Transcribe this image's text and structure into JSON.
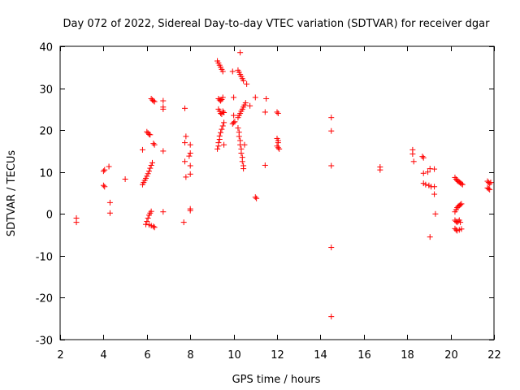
{
  "chart_data": {
    "type": "scatter",
    "title": "Day 072 of 2022, Sidereal Day-to-day VTEC variation (SDTVAR) for receiver dgar",
    "xlabel": "GPS time / hours",
    "ylabel": "SDTVAR / TECUs",
    "xlim": [
      2,
      22
    ],
    "ylim": [
      -30,
      40
    ],
    "xticks": [
      "2",
      "4",
      "6",
      "8",
      "10",
      "12",
      "14",
      "16",
      "18",
      "20",
      "22"
    ],
    "yticks": [
      "40",
      "30",
      "20",
      "10",
      "0",
      "-10",
      "-20",
      "-30"
    ],
    "marker": "+",
    "series": [
      {
        "name": "SDTVAR",
        "color": "#ff0000",
        "points": [
          [
            2.75,
            -1.0
          ],
          [
            2.75,
            -2.0
          ],
          [
            4.0,
            10.2
          ],
          [
            4.05,
            10.5
          ],
          [
            4.0,
            6.8
          ],
          [
            4.05,
            6.5
          ],
          [
            4.25,
            11.3
          ],
          [
            4.3,
            2.7
          ],
          [
            4.3,
            0.2
          ],
          [
            5.0,
            8.3
          ],
          [
            5.8,
            15.3
          ],
          [
            5.8,
            7.0
          ],
          [
            5.85,
            7.5
          ],
          [
            5.9,
            8.0
          ],
          [
            5.95,
            8.5
          ],
          [
            6.0,
            9.0
          ],
          [
            6.05,
            9.6
          ],
          [
            6.1,
            10.2
          ],
          [
            6.15,
            10.9
          ],
          [
            6.2,
            11.6
          ],
          [
            6.25,
            12.2
          ],
          [
            5.95,
            -2.5
          ],
          [
            6.0,
            -1.8
          ],
          [
            6.05,
            -1.0
          ],
          [
            6.1,
            -0.3
          ],
          [
            6.15,
            0.2
          ],
          [
            6.2,
            0.6
          ],
          [
            6.1,
            -2.6
          ],
          [
            6.2,
            -2.8
          ],
          [
            6.3,
            -3.0
          ],
          [
            6.35,
            -3.2
          ],
          [
            6.0,
            19.6
          ],
          [
            6.05,
            19.3
          ],
          [
            6.1,
            19.0
          ],
          [
            6.15,
            18.9
          ],
          [
            6.2,
            27.5
          ],
          [
            6.25,
            27.2
          ],
          [
            6.3,
            27.0
          ],
          [
            6.35,
            26.8
          ],
          [
            6.3,
            16.8
          ],
          [
            6.35,
            16.5
          ],
          [
            6.75,
            27.0
          ],
          [
            6.75,
            25.5
          ],
          [
            6.75,
            25.0
          ],
          [
            6.75,
            15.0
          ],
          [
            6.75,
            0.5
          ],
          [
            7.75,
            25.2
          ],
          [
            7.8,
            18.5
          ],
          [
            7.75,
            17.0
          ],
          [
            7.75,
            12.5
          ],
          [
            7.8,
            8.8
          ],
          [
            7.7,
            -2.0
          ],
          [
            8.0,
            16.5
          ],
          [
            8.0,
            14.5
          ],
          [
            7.95,
            13.8
          ],
          [
            8.0,
            11.5
          ],
          [
            8.0,
            9.5
          ],
          [
            8.0,
            1.2
          ],
          [
            8.0,
            0.8
          ],
          [
            9.25,
            36.5
          ],
          [
            9.3,
            36.0
          ],
          [
            9.35,
            35.5
          ],
          [
            9.4,
            35.0
          ],
          [
            9.45,
            34.5
          ],
          [
            9.5,
            34.0
          ],
          [
            9.3,
            27.5
          ],
          [
            9.35,
            27.2
          ],
          [
            9.4,
            27.0
          ],
          [
            9.45,
            27.3
          ],
          [
            9.5,
            27.8
          ],
          [
            9.3,
            25.0
          ],
          [
            9.35,
            24.5
          ],
          [
            9.4,
            24.0
          ],
          [
            9.45,
            23.8
          ],
          [
            9.5,
            24.5
          ],
          [
            9.55,
            24.2
          ],
          [
            9.25,
            15.5
          ],
          [
            9.3,
            16.2
          ],
          [
            9.3,
            17.0
          ],
          [
            9.35,
            17.8
          ],
          [
            9.35,
            18.6
          ],
          [
            9.4,
            19.4
          ],
          [
            9.45,
            20.2
          ],
          [
            9.5,
            21.0
          ],
          [
            9.55,
            21.8
          ],
          [
            9.55,
            16.5
          ],
          [
            9.95,
            34.0
          ],
          [
            10.0,
            27.8
          ],
          [
            10.0,
            23.5
          ],
          [
            9.95,
            21.5
          ],
          [
            10.0,
            21.8
          ],
          [
            10.05,
            22.0
          ],
          [
            10.2,
            34.3
          ],
          [
            10.25,
            33.8
          ],
          [
            10.3,
            33.3
          ],
          [
            10.35,
            32.8
          ],
          [
            10.4,
            32.3
          ],
          [
            10.45,
            31.8
          ],
          [
            10.3,
            38.5
          ],
          [
            10.6,
            31.0
          ],
          [
            10.2,
            23.0
          ],
          [
            10.25,
            23.5
          ],
          [
            10.3,
            24.0
          ],
          [
            10.35,
            24.5
          ],
          [
            10.4,
            25.0
          ],
          [
            10.45,
            25.5
          ],
          [
            10.5,
            26.0
          ],
          [
            10.55,
            26.5
          ],
          [
            10.2,
            20.5
          ],
          [
            10.25,
            19.5
          ],
          [
            10.25,
            18.5
          ],
          [
            10.3,
            17.5
          ],
          [
            10.3,
            16.5
          ],
          [
            10.35,
            15.5
          ],
          [
            10.35,
            14.5
          ],
          [
            10.4,
            13.5
          ],
          [
            10.4,
            12.5
          ],
          [
            10.45,
            11.5
          ],
          [
            10.45,
            10.8
          ],
          [
            10.5,
            16.5
          ],
          [
            10.75,
            25.8
          ],
          [
            11.0,
            27.8
          ],
          [
            11.0,
            4.0
          ],
          [
            11.05,
            3.7
          ],
          [
            11.5,
            27.5
          ],
          [
            11.45,
            24.3
          ],
          [
            11.45,
            11.6
          ],
          [
            12.0,
            24.3
          ],
          [
            12.05,
            24.0
          ],
          [
            12.0,
            18.0
          ],
          [
            12.05,
            17.5
          ],
          [
            12.0,
            16.2
          ],
          [
            12.05,
            15.8
          ],
          [
            12.1,
            15.5
          ],
          [
            12.05,
            17.0
          ],
          [
            14.5,
            23.0
          ],
          [
            14.5,
            19.8
          ],
          [
            14.5,
            11.5
          ],
          [
            14.5,
            -8.0
          ],
          [
            14.5,
            -24.5
          ],
          [
            16.75,
            11.2
          ],
          [
            16.75,
            10.5
          ],
          [
            18.25,
            15.3
          ],
          [
            18.25,
            14.3
          ],
          [
            18.3,
            12.5
          ],
          [
            18.7,
            13.7
          ],
          [
            18.75,
            13.4
          ],
          [
            18.75,
            9.7
          ],
          [
            18.95,
            10.0
          ],
          [
            18.75,
            7.3
          ],
          [
            18.85,
            7.0
          ],
          [
            19.0,
            6.8
          ],
          [
            19.1,
            6.5
          ],
          [
            19.05,
            10.8
          ],
          [
            19.25,
            10.7
          ],
          [
            19.25,
            6.5
          ],
          [
            19.25,
            4.7
          ],
          [
            19.3,
            0.0
          ],
          [
            19.05,
            -5.5
          ],
          [
            20.2,
            8.7
          ],
          [
            20.25,
            8.3
          ],
          [
            20.3,
            8.0
          ],
          [
            20.35,
            7.8
          ],
          [
            20.4,
            7.6
          ],
          [
            20.45,
            7.4
          ],
          [
            20.5,
            7.2
          ],
          [
            20.55,
            7.0
          ],
          [
            20.2,
            0.5
          ],
          [
            20.25,
            1.0
          ],
          [
            20.3,
            1.5
          ],
          [
            20.35,
            1.8
          ],
          [
            20.4,
            2.0
          ],
          [
            20.45,
            2.2
          ],
          [
            20.5,
            2.4
          ],
          [
            20.2,
            -1.5
          ],
          [
            20.25,
            -1.8
          ],
          [
            20.3,
            -2.0
          ],
          [
            20.35,
            -1.8
          ],
          [
            20.4,
            -1.5
          ],
          [
            20.45,
            -2.0
          ],
          [
            20.2,
            -3.5
          ],
          [
            20.25,
            -3.8
          ],
          [
            20.3,
            -4.0
          ],
          [
            20.4,
            -3.8
          ],
          [
            20.5,
            -3.6
          ],
          [
            21.7,
            7.8
          ],
          [
            21.75,
            7.5
          ],
          [
            21.8,
            7.2
          ],
          [
            21.85,
            7.5
          ],
          [
            21.7,
            6.2
          ],
          [
            21.75,
            6.0
          ],
          [
            21.8,
            5.8
          ]
        ]
      }
    ]
  }
}
